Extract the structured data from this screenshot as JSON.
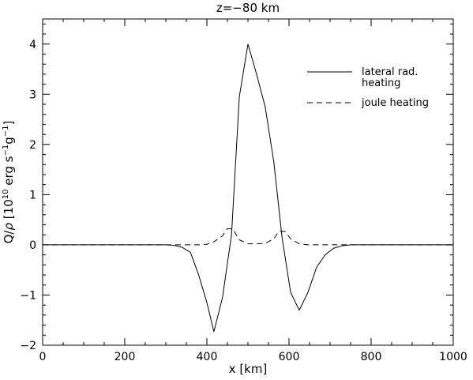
{
  "chart_data": {
    "type": "line",
    "title": "z=−80 km",
    "xlabel": "x [km]",
    "ylabel_parts": {
      "prefix": "Q/",
      "rho": "ρ",
      "open": " [10",
      "exp10": "10",
      "mid": " erg s",
      "exp_s": "−1",
      "g": "g",
      "exp_g": "−1",
      "close": "]"
    },
    "xlim": [
      0,
      1000
    ],
    "ylim": [
      -2.0,
      4.5
    ],
    "xticks": [
      0,
      200,
      400,
      600,
      800,
      1000
    ],
    "yticks": [
      -2,
      -1,
      0,
      1,
      2,
      3,
      4
    ],
    "xtick_labels": [
      "0",
      "200",
      "400",
      "600",
      "800",
      "1000"
    ],
    "ytick_labels": [
      "−2",
      "−1",
      "0",
      "1",
      "2",
      "3",
      "4"
    ],
    "grid": false,
    "legend_position": "top-right",
    "series": [
      {
        "name": "lateral rad. heating",
        "name_lines": [
          "lateral rad.",
          "heating"
        ],
        "style": "solid",
        "color": "#000000",
        "x": [
          0,
          50,
          100,
          150,
          200,
          250,
          300,
          320,
          340,
          360,
          380,
          400,
          417,
          438,
          460,
          479,
          500,
          521,
          542,
          563,
          583,
          604,
          625,
          646,
          667,
          688,
          708,
          729,
          750,
          800,
          850,
          900,
          950,
          1000
        ],
        "y": [
          0,
          0,
          0,
          0,
          0,
          0,
          0,
          -0.01,
          -0.05,
          -0.15,
          -0.6,
          -1.15,
          -1.73,
          -1.05,
          0.2,
          2.95,
          4.0,
          3.4,
          2.75,
          1.65,
          0.15,
          -0.95,
          -1.3,
          -0.95,
          -0.45,
          -0.2,
          -0.07,
          -0.02,
          0,
          0,
          0,
          0,
          0,
          0
        ]
      },
      {
        "name": "joule heating",
        "style": "dashed",
        "color": "#000000",
        "x": [
          0,
          50,
          100,
          150,
          200,
          250,
          300,
          340,
          360,
          380,
          400,
          417,
          438,
          450,
          463,
          479,
          500,
          521,
          542,
          563,
          575,
          590,
          604,
          625,
          646,
          667,
          688,
          750,
          800,
          850,
          900,
          950,
          1000
        ],
        "y": [
          0,
          0,
          0,
          0,
          0,
          0,
          0,
          0,
          0,
          0,
          0.01,
          0.06,
          0.18,
          0.32,
          0.32,
          0.1,
          0.02,
          0.02,
          0.03,
          0.12,
          0.27,
          0.27,
          0.12,
          0.02,
          0.0,
          0,
          0,
          0,
          0,
          0,
          0,
          0,
          0
        ]
      }
    ]
  }
}
